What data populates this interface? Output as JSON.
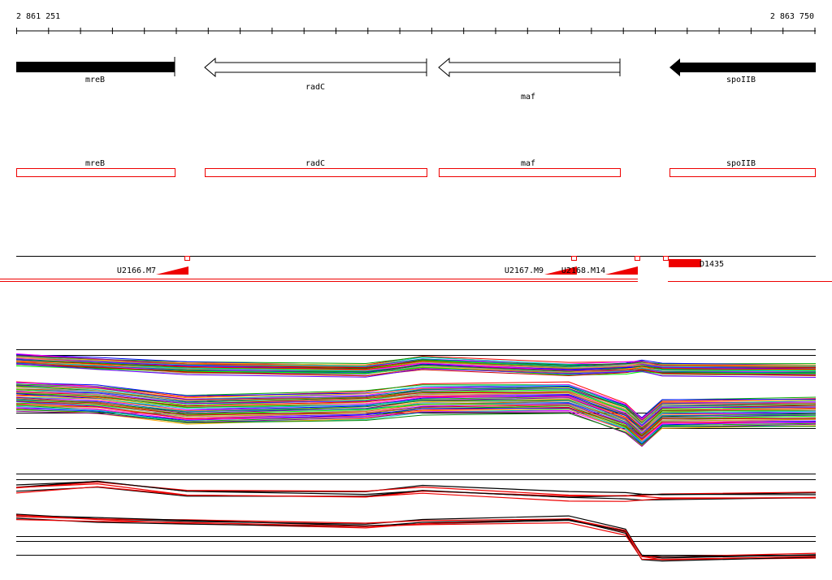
{
  "ruler": {
    "start": "2 861 251",
    "end": "2 863 750"
  },
  "genes": [
    {
      "label": "mreB"
    },
    {
      "label": "radC"
    },
    {
      "label": "maf"
    },
    {
      "label": "spoIIB"
    }
  ],
  "gene_boxes": [
    {
      "label": "mreB"
    },
    {
      "label": "radC"
    },
    {
      "label": "maf"
    },
    {
      "label": "spoIIB"
    }
  ],
  "features": [
    {
      "label": "U2166.M7"
    },
    {
      "label": "U2167.M9"
    },
    {
      "label": "U2168.M14"
    },
    {
      "label": "D1435"
    }
  ]
}
